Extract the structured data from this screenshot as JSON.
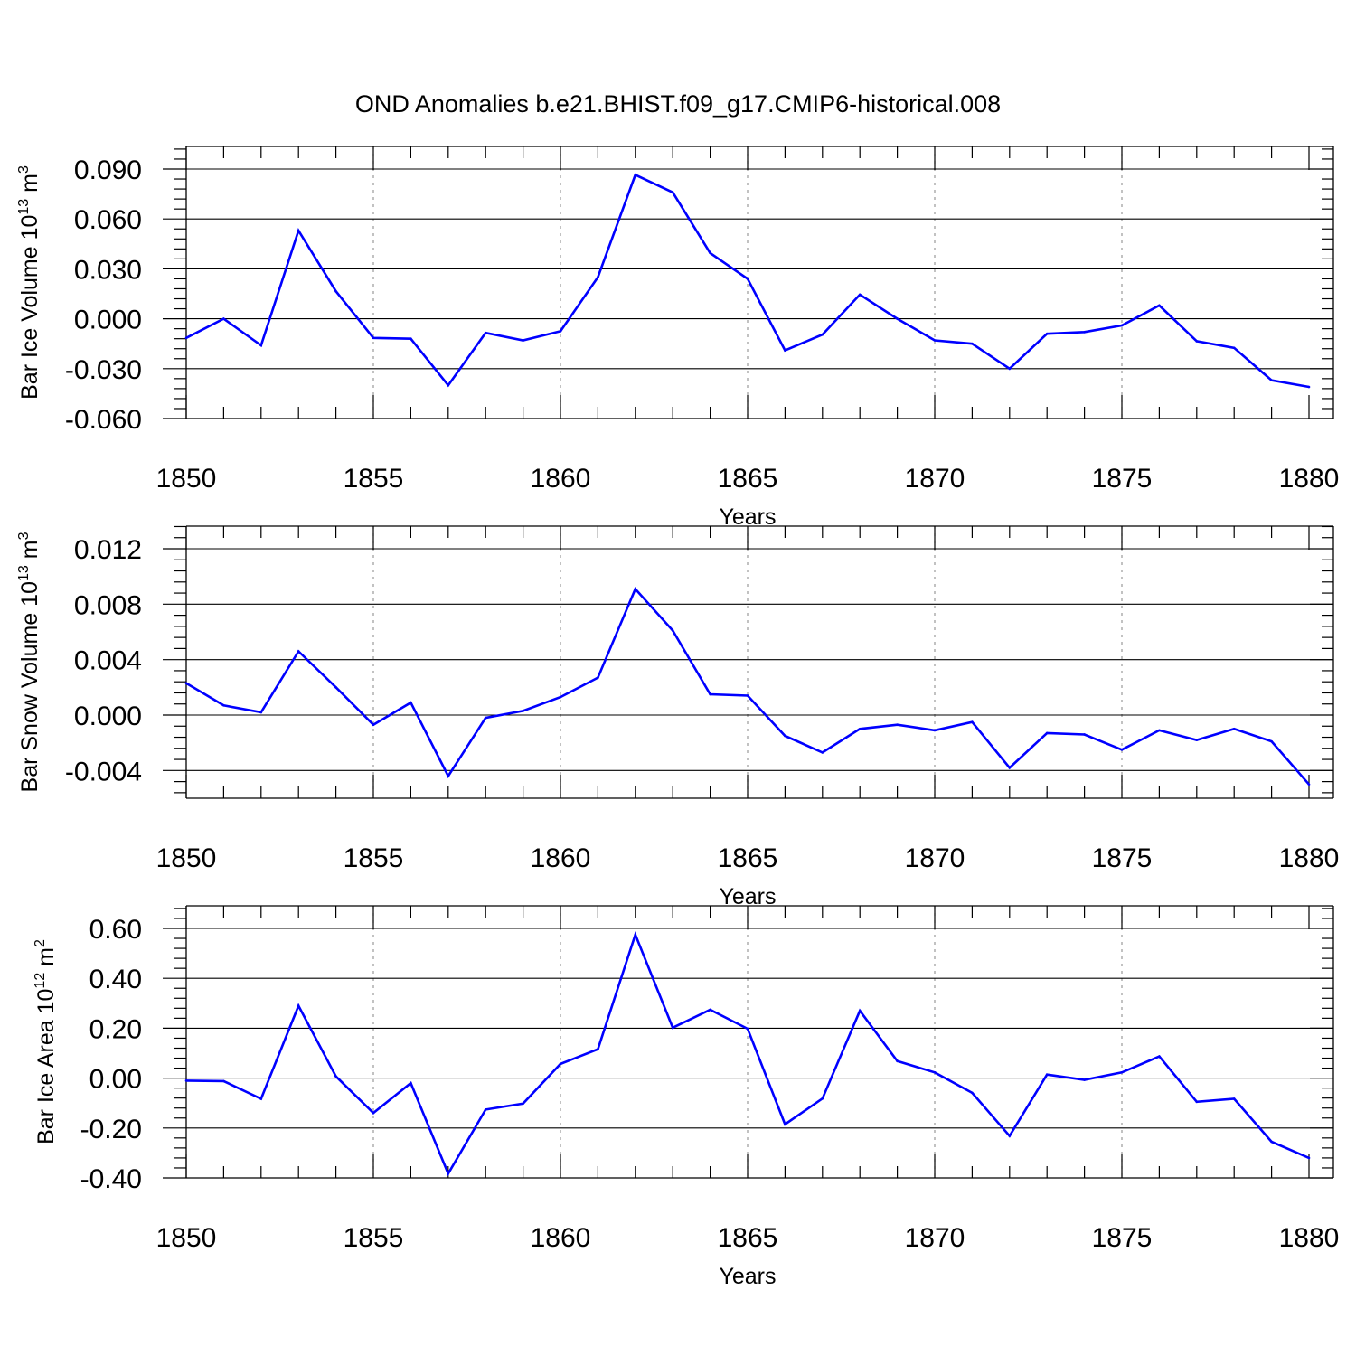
{
  "figure": {
    "title": "OND Anomalies b.e21.BHIST.f09_g17.CMIP6-historical.008"
  },
  "chart_data": [
    {
      "type": "line",
      "title": "OND Anomalies b.e21.BHIST.f09_g17.CMIP6-historical.008",
      "xlabel": "Years",
      "ylabel": {
        "text": "Bar Ice Volume 10",
        "exp": "13",
        "unit": " m",
        "unit_exp": "3"
      },
      "xlim": [
        1850,
        1880
      ],
      "ylim": [
        -0.06,
        0.09
      ],
      "x_ticks": [
        1850,
        1855,
        1860,
        1865,
        1870,
        1875,
        1880
      ],
      "x_tick_labels": [
        "1850",
        "1855",
        "1860",
        "1865",
        "1870",
        "1875",
        "1880"
      ],
      "y_ticks": [
        -0.06,
        -0.03,
        0.0,
        0.03,
        0.06,
        0.09
      ],
      "y_tick_labels": [
        "-0.060",
        "-0.030",
        "0.000",
        "0.030",
        "0.060",
        "0.090"
      ],
      "grid": "dashed vertical lines at labeled years",
      "color": "#0000ff",
      "x": [
        1850,
        1851,
        1852,
        1853,
        1854,
        1855,
        1856,
        1857,
        1858,
        1859,
        1860,
        1861,
        1862,
        1863,
        1864,
        1865,
        1866,
        1867,
        1868,
        1869,
        1870,
        1871,
        1872,
        1873,
        1874,
        1875,
        1876,
        1877,
        1878,
        1879,
        1880
      ],
      "y": [
        -0.0115,
        0.0,
        -0.016,
        0.053,
        0.0165,
        -0.0115,
        -0.012,
        -0.04,
        -0.0085,
        -0.013,
        -0.0075,
        0.025,
        0.0865,
        0.076,
        0.0395,
        0.024,
        -0.019,
        -0.0095,
        0.0145,
        0.0,
        -0.013,
        -0.015,
        -0.03,
        -0.009,
        -0.008,
        -0.004,
        0.008,
        -0.0135,
        -0.0175,
        -0.037,
        -0.041
      ]
    },
    {
      "type": "line",
      "xlabel": "Years",
      "ylabel": {
        "text": "Bar Snow Volume 10",
        "exp": "13",
        "unit": " m",
        "unit_exp": "3"
      },
      "xlim": [
        1850,
        1880
      ],
      "ylim": [
        -0.006,
        0.012
      ],
      "x_ticks": [
        1850,
        1855,
        1860,
        1865,
        1870,
        1875,
        1880
      ],
      "x_tick_labels": [
        "1850",
        "1855",
        "1860",
        "1865",
        "1870",
        "1875",
        "1880"
      ],
      "y_ticks": [
        -0.004,
        0.0,
        0.004,
        0.008,
        0.012
      ],
      "y_tick_labels": [
        "-0.004",
        "0.000",
        "0.004",
        "0.008",
        "0.012"
      ],
      "grid": "dashed vertical lines at labeled years",
      "color": "#0000ff",
      "x": [
        1850,
        1851,
        1852,
        1853,
        1854,
        1855,
        1856,
        1857,
        1858,
        1859,
        1860,
        1861,
        1862,
        1863,
        1864,
        1865,
        1866,
        1867,
        1868,
        1869,
        1870,
        1871,
        1872,
        1873,
        1874,
        1875,
        1876,
        1877,
        1878,
        1879,
        1880
      ],
      "y": [
        0.0023,
        0.0007,
        0.0002,
        0.0046,
        0.002,
        -0.0007,
        0.0009,
        -0.0044,
        -0.0002,
        0.0003,
        0.0013,
        0.0027,
        0.0091,
        0.0061,
        0.0015,
        0.0014,
        -0.0015,
        -0.0027,
        -0.001,
        -0.0007,
        -0.0011,
        -0.0005,
        -0.0038,
        -0.0013,
        -0.0014,
        -0.0025,
        -0.0011,
        -0.0018,
        -0.001,
        -0.0019,
        -0.005
      ]
    },
    {
      "type": "line",
      "xlabel": "Years",
      "ylabel": {
        "text": "Bar Ice Area 10",
        "exp": "12",
        "unit": " m",
        "unit_exp": "2"
      },
      "xlim": [
        1850,
        1880
      ],
      "ylim": [
        -0.4,
        0.6
      ],
      "x_ticks": [
        1850,
        1855,
        1860,
        1865,
        1870,
        1875,
        1880
      ],
      "x_tick_labels": [
        "1850",
        "1855",
        "1860",
        "1865",
        "1870",
        "1875",
        "1880"
      ],
      "y_ticks": [
        -0.4,
        -0.2,
        0.0,
        0.2,
        0.4,
        0.6
      ],
      "y_tick_labels": [
        "-0.40",
        "-0.20",
        "0.00",
        "0.20",
        "0.40",
        "0.60"
      ],
      "grid": "dashed vertical lines at labeled years",
      "color": "#0000ff",
      "x": [
        1850,
        1851,
        1852,
        1853,
        1854,
        1855,
        1856,
        1857,
        1858,
        1859,
        1860,
        1861,
        1862,
        1863,
        1864,
        1865,
        1866,
        1867,
        1868,
        1869,
        1870,
        1871,
        1872,
        1873,
        1874,
        1875,
        1876,
        1877,
        1878,
        1879,
        1880
      ],
      "y": [
        -0.01,
        -0.012,
        -0.083,
        0.29,
        0.007,
        -0.14,
        -0.02,
        -0.383,
        -0.126,
        -0.102,
        0.057,
        0.116,
        0.575,
        0.202,
        0.274,
        0.198,
        -0.185,
        -0.082,
        0.27,
        0.068,
        0.023,
        -0.059,
        -0.232,
        0.014,
        -0.007,
        0.023,
        0.087,
        -0.095,
        -0.083,
        -0.255,
        -0.32
      ]
    }
  ]
}
